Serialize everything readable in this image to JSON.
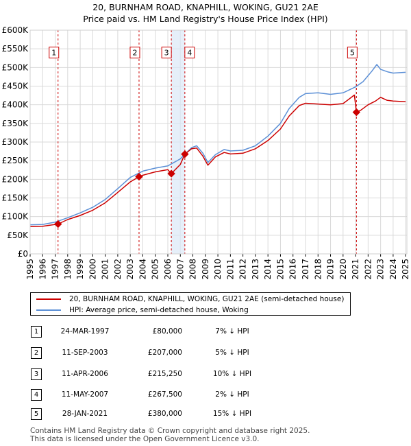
{
  "chart_data": {
    "type": "line",
    "title": "20, BURNHAM ROAD, KNAPHILL, WOKING, GU21 2AE",
    "subtitle": "Price paid vs. HM Land Registry's House Price Index (HPI)",
    "xlim": [
      1995,
      2025.1
    ],
    "ylim": [
      0,
      600000
    ],
    "x_ticks": [
      1995,
      1996,
      1997,
      1998,
      1999,
      2000,
      2001,
      2002,
      2003,
      2004,
      2005,
      2006,
      2007,
      2008,
      2009,
      2010,
      2011,
      2012,
      2013,
      2014,
      2015,
      2016,
      2017,
      2018,
      2019,
      2020,
      2021,
      2022,
      2023,
      2024,
      2025
    ],
    "y_ticks": [
      {
        "v": 0,
        "label": "£0"
      },
      {
        "v": 50000,
        "label": "£50K"
      },
      {
        "v": 100000,
        "label": "£100K"
      },
      {
        "v": 150000,
        "label": "£150K"
      },
      {
        "v": 200000,
        "label": "£200K"
      },
      {
        "v": 250000,
        "label": "£250K"
      },
      {
        "v": 300000,
        "label": "£300K"
      },
      {
        "v": 350000,
        "label": "£350K"
      },
      {
        "v": 400000,
        "label": "£400K"
      },
      {
        "v": 450000,
        "label": "£450K"
      },
      {
        "v": 500000,
        "label": "£500K"
      },
      {
        "v": 550000,
        "label": "£550K"
      },
      {
        "v": 600000,
        "label": "£600K"
      }
    ],
    "grid": true,
    "shaded_ranges": [
      [
        2006.28,
        2007.36
      ]
    ],
    "series": [
      {
        "name": "20, BURNHAM ROAD, KNAPHILL, WOKING, GU21 2AE (semi-detached house)",
        "color": "#cc0000",
        "points": [
          [
            1995.0,
            73000
          ],
          [
            1996.0,
            74000
          ],
          [
            1997.0,
            79000
          ],
          [
            1997.23,
            80000
          ],
          [
            1998.0,
            92000
          ],
          [
            1999.0,
            103000
          ],
          [
            2000.0,
            117000
          ],
          [
            2001.0,
            137000
          ],
          [
            2002.0,
            165000
          ],
          [
            2003.0,
            193000
          ],
          [
            2003.7,
            207000
          ],
          [
            2004.0,
            211000
          ],
          [
            2005.0,
            220000
          ],
          [
            2006.0,
            226000
          ],
          [
            2006.28,
            215250
          ],
          [
            2007.0,
            240000
          ],
          [
            2007.36,
            267500
          ],
          [
            2007.9,
            282000
          ],
          [
            2008.3,
            284000
          ],
          [
            2008.8,
            262000
          ],
          [
            2009.2,
            238000
          ],
          [
            2009.8,
            260000
          ],
          [
            2010.5,
            272000
          ],
          [
            2011.0,
            268000
          ],
          [
            2012.0,
            270000
          ],
          [
            2013.0,
            282000
          ],
          [
            2014.0,
            304000
          ],
          [
            2015.0,
            335000
          ],
          [
            2015.7,
            370000
          ],
          [
            2016.5,
            398000
          ],
          [
            2017.0,
            404000
          ],
          [
            2018.0,
            402000
          ],
          [
            2019.0,
            400000
          ],
          [
            2020.0,
            403000
          ],
          [
            2020.9,
            426000
          ],
          [
            2021.07,
            380000
          ],
          [
            2021.4,
            385000
          ],
          [
            2022.0,
            400000
          ],
          [
            2022.6,
            410000
          ],
          [
            2023.0,
            420000
          ],
          [
            2023.5,
            412000
          ],
          [
            2024.0,
            410000
          ],
          [
            2025.0,
            408000
          ]
        ]
      },
      {
        "name": "HPI: Average price, semi-detached house, Woking",
        "color": "#5b8fd6",
        "points": [
          [
            1995.0,
            78000
          ],
          [
            1996.0,
            79000
          ],
          [
            1997.0,
            85000
          ],
          [
            1998.0,
            97000
          ],
          [
            1999.0,
            110000
          ],
          [
            2000.0,
            125000
          ],
          [
            2001.0,
            146000
          ],
          [
            2002.0,
            175000
          ],
          [
            2003.0,
            205000
          ],
          [
            2004.0,
            222000
          ],
          [
            2005.0,
            230000
          ],
          [
            2006.0,
            236000
          ],
          [
            2007.0,
            255000
          ],
          [
            2007.9,
            285000
          ],
          [
            2008.3,
            290000
          ],
          [
            2008.8,
            270000
          ],
          [
            2009.2,
            245000
          ],
          [
            2009.8,
            266000
          ],
          [
            2010.5,
            280000
          ],
          [
            2011.0,
            276000
          ],
          [
            2012.0,
            278000
          ],
          [
            2013.0,
            290000
          ],
          [
            2014.0,
            316000
          ],
          [
            2015.0,
            350000
          ],
          [
            2015.7,
            390000
          ],
          [
            2016.5,
            420000
          ],
          [
            2017.0,
            430000
          ],
          [
            2018.0,
            432000
          ],
          [
            2019.0,
            428000
          ],
          [
            2020.0,
            432000
          ],
          [
            2021.0,
            448000
          ],
          [
            2021.6,
            462000
          ],
          [
            2022.3,
            490000
          ],
          [
            2022.7,
            508000
          ],
          [
            2023.0,
            495000
          ],
          [
            2023.6,
            488000
          ],
          [
            2024.0,
            485000
          ],
          [
            2025.0,
            487000
          ]
        ]
      }
    ],
    "sales": [
      {
        "label": "1",
        "x": 1997.23,
        "price": 80000,
        "date": "24-MAR-1997",
        "price_text": "£80,000",
        "hpi_text": "7% ↓ HPI"
      },
      {
        "label": "2",
        "x": 2003.7,
        "price": 207000,
        "date": "11-SEP-2003",
        "price_text": "£207,000",
        "hpi_text": "5% ↓ HPI"
      },
      {
        "label": "3",
        "x": 2006.28,
        "price": 215250,
        "date": "11-APR-2006",
        "price_text": "£215,250",
        "hpi_text": "10% ↓ HPI"
      },
      {
        "label": "4",
        "x": 2007.36,
        "price": 267500,
        "date": "11-MAY-2007",
        "price_text": "£267,500",
        "hpi_text": "2% ↓ HPI"
      },
      {
        "label": "5",
        "x": 2021.07,
        "price": 380000,
        "date": "28-JAN-2021",
        "price_text": "£380,000",
        "hpi_text": "15% ↓ HPI"
      }
    ],
    "marker_label_value": 540000
  },
  "legend": {
    "property": "20, BURNHAM ROAD, KNAPHILL, WOKING, GU21 2AE (semi-detached house)",
    "hpi": "HPI: Average price, semi-detached house, Woking"
  },
  "footer": {
    "line1": "Contains HM Land Registry data © Crown copyright and database right 2025.",
    "line2": "This data is licensed under the Open Government Licence v3.0."
  }
}
